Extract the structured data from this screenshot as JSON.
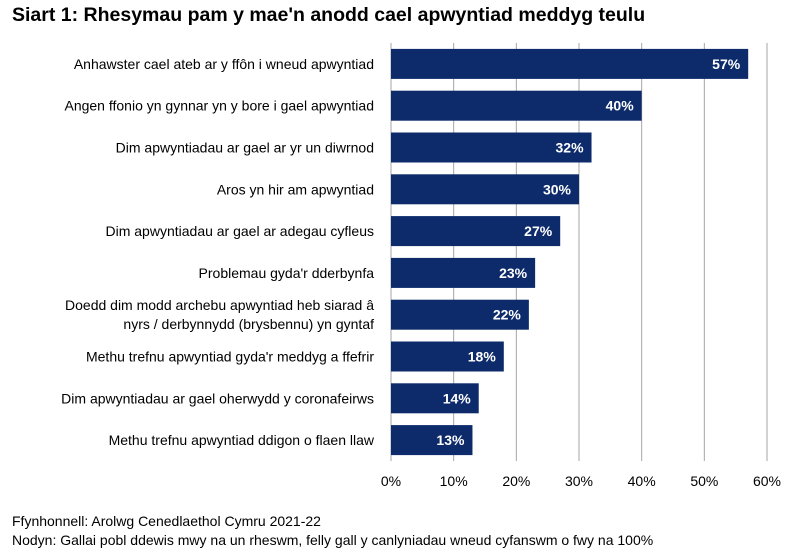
{
  "chart_data": {
    "type": "bar",
    "orientation": "horizontal",
    "title": "Siart 1: Rhesymau pam y mae'n anodd cael apwyntiad meddyg teulu",
    "categories": [
      [
        "Anhawster cael ateb ar y ffôn i wneud apwyntiad"
      ],
      [
        "Angen ffonio yn gynnar yn y bore i gael apwyntiad"
      ],
      [
        "Dim apwyntiadau ar gael ar yr un diwrnod"
      ],
      [
        "Aros yn hir am apwyntiad"
      ],
      [
        "Dim apwyntiadau ar gael ar adegau cyfleus"
      ],
      [
        "Problemau gyda'r dderbynfa"
      ],
      [
        "Doedd dim modd archebu apwyntiad heb siarad â",
        "nyrs / derbynnydd (brysbennu) yn gyntaf"
      ],
      [
        "Methu trefnu apwyntiad gyda'r meddyg a ffefrir"
      ],
      [
        "Dim apwyntiadau ar gael oherwydd y coronafeirws"
      ],
      [
        "Methu trefnu apwyntiad ddigon o flaen llaw"
      ]
    ],
    "values": [
      57,
      40,
      32,
      30,
      27,
      23,
      22,
      18,
      14,
      13
    ],
    "value_labels": [
      "57%",
      "40%",
      "32%",
      "30%",
      "27%",
      "23%",
      "22%",
      "18%",
      "14%",
      "13%"
    ],
    "xlim": [
      0,
      60
    ],
    "xticks": [
      "0%",
      "10%",
      "20%",
      "30%",
      "40%",
      "50%",
      "60%"
    ],
    "xtick_values": [
      0,
      10,
      20,
      30,
      40,
      50,
      60
    ],
    "grid": "vertical",
    "bar_color": "#0d2b6b",
    "label_color": "#ffffff",
    "grid_color": "#a6a6a6"
  },
  "footer": {
    "source": "Ffynhonnell: Arolwg Cenedlaethol Cymru 2021-22",
    "note": "Nodyn: Gallai pobl ddewis mwy na un rheswm, felly gall y canlyniadau wneud cyfanswm o fwy na 100%"
  }
}
